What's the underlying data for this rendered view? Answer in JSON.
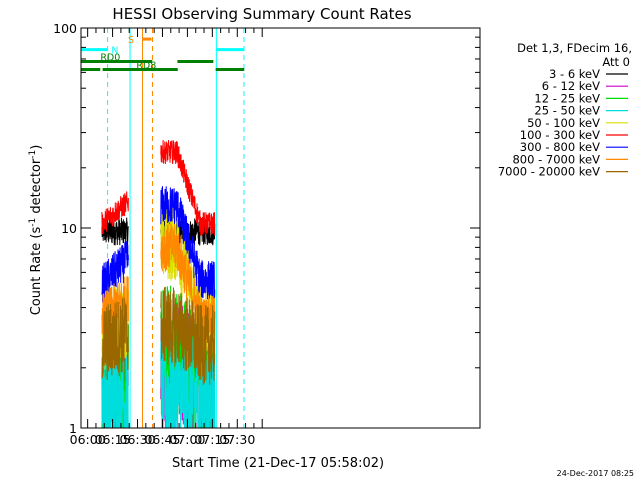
{
  "chart_data": {
    "type": "line",
    "title": "HESSI Observing Summary Count Rates",
    "xlabel": "Start Time (21-Dec-17 05:58:02)",
    "ylabel_main": "Count Rate (s",
    "ylabel_sup1": "-1",
    "ylabel_mid": " detector",
    "ylabel_sup2": "-1",
    "ylabel_end": ")",
    "yscale": "log",
    "ylim": [
      1,
      100
    ],
    "xlim_minutes": [
      356,
      596
    ],
    "x_ticks": [
      {
        "label": "06:00",
        "minute": 360
      },
      {
        "label": "06:15",
        "minute": 375
      },
      {
        "label": "06:30",
        "minute": 390
      },
      {
        "label": "06:45",
        "minute": 405
      },
      {
        "label": "07:00",
        "minute": 420
      },
      {
        "label": "07:15",
        "minute": 435
      },
      {
        "label": "07:30",
        "minute": 450
      }
    ],
    "y_ticks": [
      {
        "label": "1",
        "value": 1
      },
      {
        "label": "10",
        "value": 10
      },
      {
        "label": "100",
        "value": 100
      }
    ],
    "legend_header_line1": "Det 1,3, FDecim 16,",
    "legend_header_line2": "Att 0",
    "legend_placement": "right",
    "series": [
      {
        "name": "3 - 6 keV",
        "color": "#000000",
        "seg1": [
          9.6,
          9.6
        ],
        "seg2": [
          9.3,
          9.6
        ],
        "noise": 0.07
      },
      {
        "name": "6 - 12 keV",
        "color": "#cc00cc",
        "seg1": [
          1.8,
          1.8
        ],
        "seg2": [
          1.9,
          1.8
        ],
        "noise": 0.35
      },
      {
        "name": "12 - 25 keV",
        "color": "#00dd00",
        "seg1": [
          1.7,
          1.7
        ],
        "seg2": [
          2.4,
          1.7
        ],
        "noise": 0.35
      },
      {
        "name": "25 - 50 keV",
        "color": "#00dddd",
        "seg1": [
          1.4,
          1.4
        ],
        "seg2": [
          1.5,
          1.4
        ],
        "noise": 0.3
      },
      {
        "name": "50 - 100 keV",
        "color": "#dddd00",
        "seg1": [
          3.0,
          3.6
        ],
        "seg2": [
          8.5,
          3.5
        ],
        "noise": 0.2
      },
      {
        "name": "100 - 300 keV",
        "color": "#ff0000",
        "seg1": [
          10.5,
          13.5
        ],
        "seg2": [
          24.0,
          10.5
        ],
        "noise": 0.06
      },
      {
        "name": "300 - 800 keV",
        "color": "#0000ff",
        "seg1": [
          5.2,
          7.0
        ],
        "seg2": [
          13.0,
          5.5
        ],
        "noise": 0.1
      },
      {
        "name": "800 - 7000 keV",
        "color": "#ff8800",
        "seg1": [
          3.6,
          4.5
        ],
        "seg2": [
          8.0,
          3.5
        ],
        "noise": 0.12
      },
      {
        "name": "7000 - 20000 keV",
        "color": "#996600",
        "seg1": [
          2.6,
          3.0
        ],
        "seg2": [
          3.2,
          2.6
        ],
        "noise": 0.2
      }
    ],
    "data_segments_minutes": [
      [
        368.6,
        384.5
      ],
      [
        404.0,
        436.4
      ]
    ],
    "flags": [
      {
        "label": "N",
        "color": "#00ffff",
        "y": 78,
        "ranges": [
          [
            356,
            371.9
          ],
          [
            437.4,
            454.2
          ]
        ]
      },
      {
        "label": "S",
        "color": "#ff8800",
        "y": 88,
        "ranges": [
          [
            392.7,
            398.4
          ]
        ]
      },
      {
        "label": "RD0",
        "color": "#008000",
        "y": 68,
        "ranges": [
          [
            356,
            398.8
          ],
          [
            414.0,
            435.6
          ]
        ]
      },
      {
        "label": "RD8",
        "color": "#008000",
        "y": 62,
        "ranges": [
          [
            356,
            367.6
          ],
          [
            369.0,
            414.2
          ],
          [
            437.0,
            454.2
          ]
        ]
      }
    ],
    "vertical_lines": [
      {
        "minute": 372,
        "color": "#00ffff",
        "dashed": true
      },
      {
        "minute": 385.5,
        "color": "#00ffff",
        "dashed": false
      },
      {
        "minute": 399,
        "color": "#ff8800",
        "dashed": true
      },
      {
        "minute": 393,
        "color": "#ff8800",
        "dashed": false
      },
      {
        "minute": 437.4,
        "color": "#00ffff",
        "dashed": false
      },
      {
        "minute": 454,
        "color": "#00ffff",
        "dashed": true
      }
    ],
    "timestamp": "24-Dec-2017 08:25"
  }
}
